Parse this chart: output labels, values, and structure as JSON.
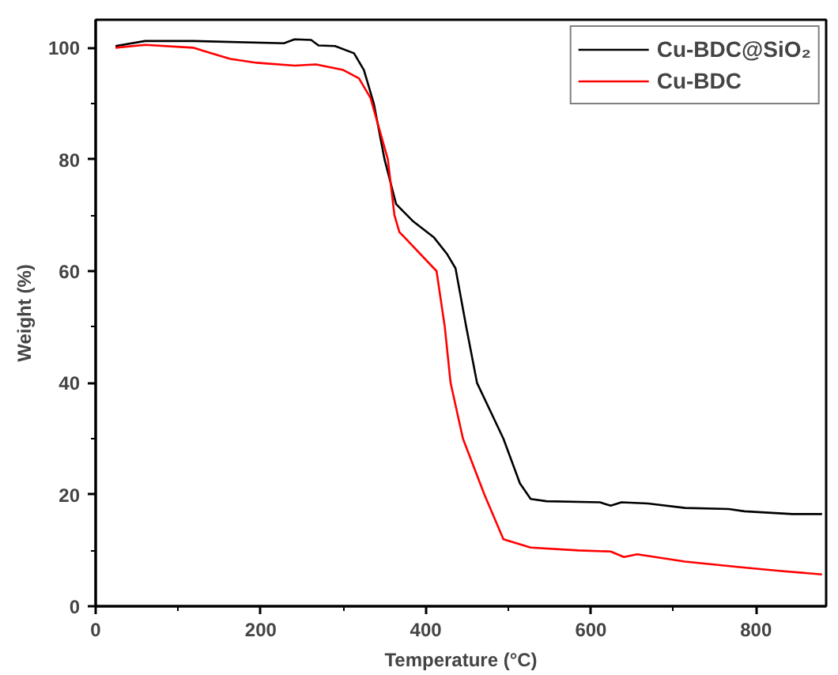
{
  "chart_data": {
    "type": "line",
    "xlabel": "Temperature (°C)",
    "ylabel": "Weight (%)",
    "xlim": [
      0,
      885
    ],
    "ylim": [
      0,
      105
    ],
    "xticks": [
      0,
      200,
      400,
      600,
      800
    ],
    "yticks": [
      0,
      20,
      40,
      60,
      80,
      100
    ],
    "grid": false,
    "legend": "top right",
    "line_style": "solid",
    "marker": "none",
    "series": [
      {
        "name": "Cu-BDC@SiO₂",
        "color": "#000000",
        "x": [
          24,
          60,
          118,
          228,
          241,
          261,
          270,
          290,
          313,
          325,
          337,
          350,
          364,
          384,
          410,
          426,
          436,
          449,
          462,
          494,
          514,
          527,
          546,
          611,
          624,
          637,
          669,
          714,
          767,
          786,
          844,
          880
        ],
        "values": [
          100.3,
          101.2,
          101.2,
          100.8,
          101.5,
          101.4,
          100.4,
          100.3,
          99,
          96,
          90,
          80,
          72,
          69,
          66,
          63,
          60.5,
          50,
          40,
          30,
          22,
          19.2,
          18.8,
          18.6,
          18,
          18.6,
          18.4,
          17.6,
          17.4,
          17,
          16.5,
          16.5
        ]
      },
      {
        "name": "Cu-BDC",
        "color": "#ff0000",
        "x": [
          24,
          60,
          118,
          163,
          195,
          241,
          267,
          300,
          319,
          333,
          354,
          362,
          368,
          413,
          423,
          430,
          445,
          471,
          494,
          527,
          585,
          624,
          640,
          656,
          714,
          780,
          831,
          880
        ],
        "values": [
          100,
          100.5,
          100,
          98,
          97.3,
          96.8,
          97,
          96,
          94.5,
          91,
          80,
          70,
          67,
          60,
          50,
          40,
          30,
          20,
          12,
          10.5,
          10,
          9.8,
          8.8,
          9.3,
          8,
          7,
          6.3,
          5.7
        ]
      }
    ]
  }
}
